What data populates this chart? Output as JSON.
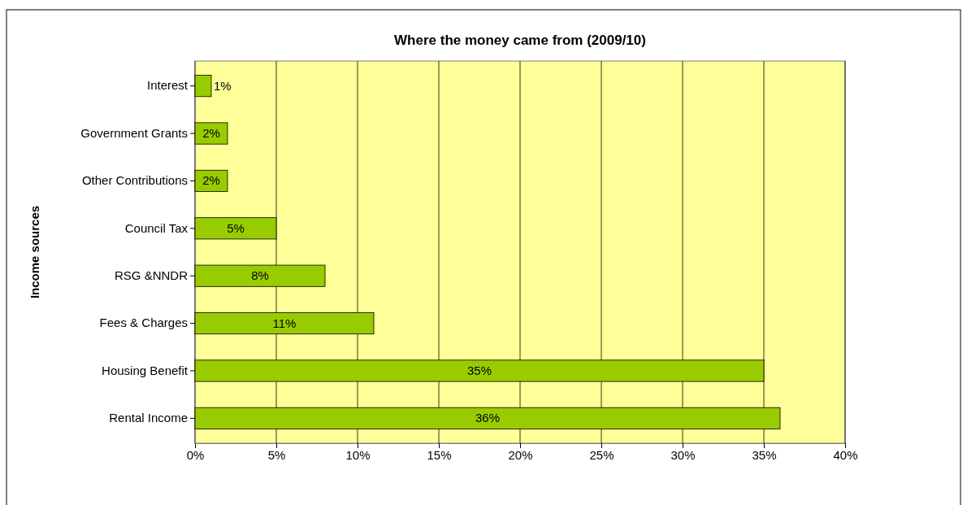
{
  "chart_data": {
    "type": "bar",
    "title": "Where the money came from (2009/10)",
    "ylabel": "Income sources",
    "orientation": "horizontal",
    "categories": [
      "Interest",
      "Government Grants",
      "Other Contributions",
      "Council Tax",
      "RSG &NNDR",
      "Fees & Charges",
      "Housing Benefit",
      "Rental Income"
    ],
    "values": [
      1,
      2,
      2,
      5,
      8,
      11,
      35,
      36
    ],
    "value_labels": [
      "1%",
      "2%",
      "2%",
      "5%",
      "8%",
      "11%",
      "35%",
      "36%"
    ],
    "color": "#99cc00",
    "xlim": [
      0,
      40
    ],
    "xticks": [
      {
        "value": 0,
        "label": "0%"
      },
      {
        "value": 5,
        "label": "5%"
      },
      {
        "value": 10,
        "label": "10%"
      },
      {
        "value": 15,
        "label": "15%"
      },
      {
        "value": 20,
        "label": "20%"
      },
      {
        "value": 25,
        "label": "25%"
      },
      {
        "value": 30,
        "label": "30%"
      },
      {
        "value": 35,
        "label": "35%"
      },
      {
        "value": 40,
        "label": "40%"
      }
    ],
    "grid": "x"
  }
}
